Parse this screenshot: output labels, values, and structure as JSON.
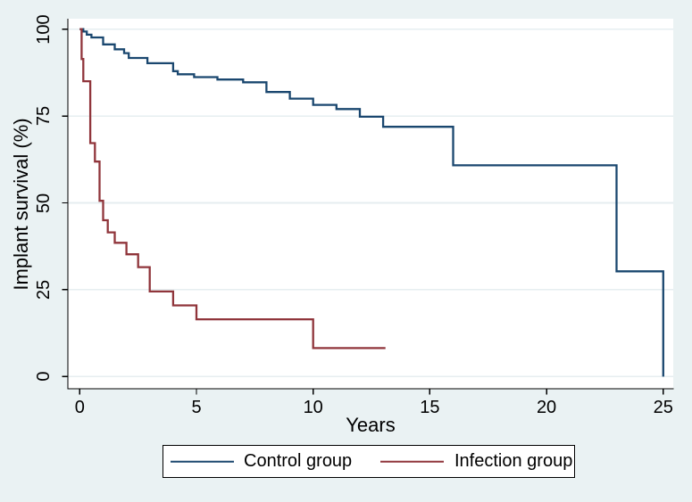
{
  "figure": {
    "x_axis_title": "Years",
    "y_axis_title": "Implant survival (%)"
  },
  "colors": {
    "background": "#EAF2F3",
    "plot_background": "#FFFFFF",
    "gridline": "#E6EEF0",
    "axis": "#000000"
  },
  "chart_data": {
    "type": "line",
    "subtype": "kaplan-meier-step",
    "title": "",
    "xlabel": "Years",
    "ylabel": "Implant survival (%)",
    "x_ticks": [
      0,
      5,
      10,
      15,
      20,
      25
    ],
    "y_ticks": [
      0,
      25,
      50,
      75,
      100
    ],
    "x_range": [
      -0.51,
      25.43
    ],
    "y_range": [
      -3.5,
      103.0
    ],
    "grid": "horizontal-only",
    "legend_position": "bottom-center",
    "series": [
      {
        "name": "Control group",
        "color": "#1A476F",
        "end_x": 25.0,
        "points": [
          [
            0,
            100
          ],
          [
            0.15,
            99.3
          ],
          [
            0.3,
            98.4
          ],
          [
            0.5,
            97.6
          ],
          [
            1,
            95.6
          ],
          [
            1.5,
            94.2
          ],
          [
            1.9,
            93.1
          ],
          [
            2.1,
            91.7
          ],
          [
            2.9,
            90.2
          ],
          [
            4,
            87.9
          ],
          [
            4.2,
            87.0
          ],
          [
            4.9,
            86.2
          ],
          [
            5.9,
            85.5
          ],
          [
            7,
            84.7
          ],
          [
            8,
            81.9
          ],
          [
            9,
            80.0
          ],
          [
            10,
            78.2
          ],
          [
            11,
            77.0
          ],
          [
            12,
            74.8
          ],
          [
            13,
            71.9
          ],
          [
            16,
            60.8
          ],
          [
            23,
            30.3
          ],
          [
            25,
            0
          ]
        ]
      },
      {
        "name": "Infection group",
        "color": "#90353B",
        "end_x": 13.1,
        "points": [
          [
            0,
            100
          ],
          [
            0.08,
            91.4
          ],
          [
            0.15,
            85.0
          ],
          [
            0.45,
            67.2
          ],
          [
            0.65,
            61.9
          ],
          [
            0.85,
            50.6
          ],
          [
            1,
            45.0
          ],
          [
            1.2,
            41.5
          ],
          [
            1.5,
            38.5
          ],
          [
            2,
            35.2
          ],
          [
            2.5,
            31.5
          ],
          [
            3,
            24.5
          ],
          [
            4,
            20.5
          ],
          [
            5,
            16.5
          ],
          [
            10,
            8.2
          ]
        ]
      }
    ]
  }
}
